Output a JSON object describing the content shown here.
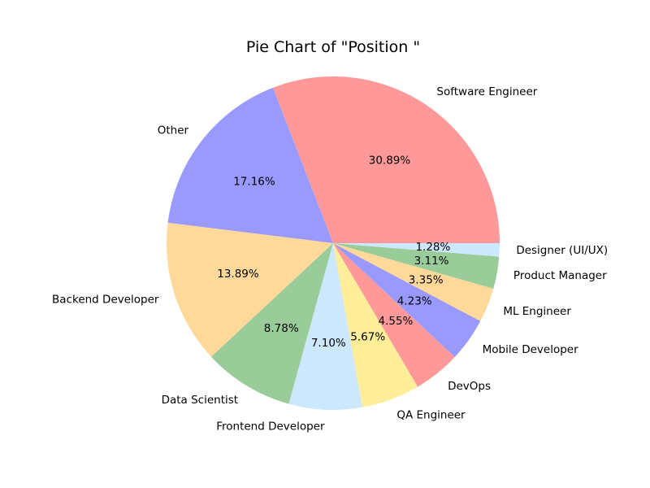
{
  "chart_data": {
    "type": "pie",
    "title": "Pie Chart of \"Position \"",
    "categories": [
      "Software Engineer",
      "Other",
      "Backend Developer",
      "Data Scientist",
      "Frontend Developer",
      "QA Engineer",
      "DevOps",
      "Mobile Developer",
      "ML Engineer",
      "Product Manager",
      "Designer (UI/UX)"
    ],
    "values": [
      30.89,
      17.16,
      13.89,
      8.78,
      7.1,
      5.67,
      4.55,
      4.23,
      3.35,
      3.11,
      1.28
    ],
    "value_labels": [
      "30.89%",
      "17.16%",
      "13.89%",
      "8.78%",
      "7.10%",
      "5.67%",
      "4.55%",
      "4.23%",
      "3.35%",
      "3.11%",
      "1.28%"
    ],
    "colors": [
      "#ff9999",
      "#9999ff",
      "#ffd999",
      "#99cc99",
      "#cce8ff",
      "#ffee99",
      "#ff9999",
      "#9999ff",
      "#ffd999",
      "#99cc99",
      "#cce8ff"
    ],
    "legend": "none"
  }
}
